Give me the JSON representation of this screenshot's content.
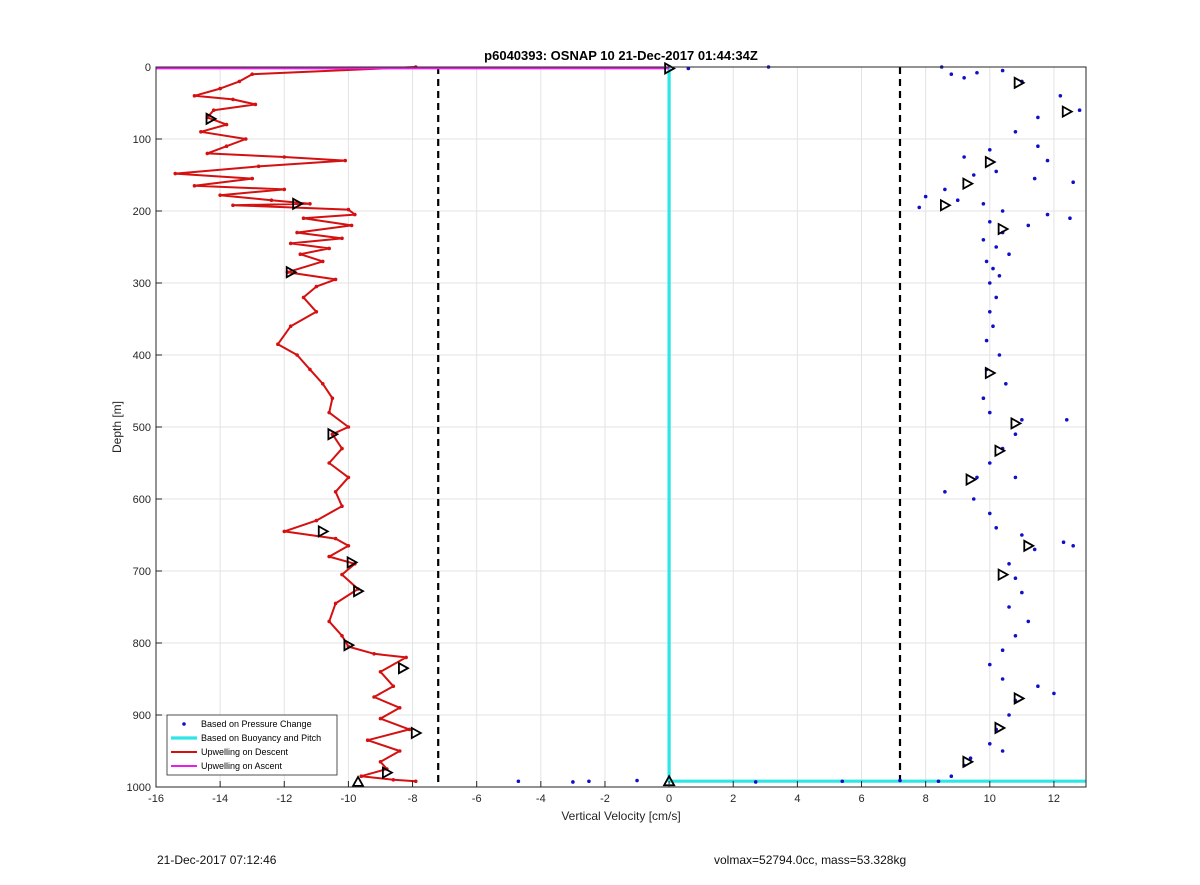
{
  "chart_data": {
    "type": "line",
    "title": "p6040393: OSNAP 10 21-Dec-2017 01:44:34Z",
    "xlabel": "Vertical Velocity [cm/s]",
    "ylabel": "Depth [m]",
    "xlim": [
      -16,
      13
    ],
    "ylim": [
      0,
      1000
    ],
    "y_reversed": true,
    "grid": true,
    "x_ticks": [
      "-16",
      "-14",
      "-12",
      "-10",
      "-8",
      "-6",
      "-4",
      "-2",
      "0",
      "2",
      "4",
      "6",
      "8",
      "10",
      "12"
    ],
    "x_tick_values": [
      -16,
      -14,
      -12,
      -10,
      -8,
      -6,
      -4,
      -2,
      0,
      2,
      4,
      6,
      8,
      10,
      12
    ],
    "y_ticks": [
      "0",
      "100",
      "200",
      "300",
      "400",
      "500",
      "600",
      "700",
      "800",
      "900",
      "1000"
    ],
    "y_tick_values": [
      0,
      100,
      200,
      300,
      400,
      500,
      600,
      700,
      800,
      900,
      1000
    ],
    "legend_position": "bottom-left",
    "vlines": [
      {
        "x": -7.2,
        "style": "dashed",
        "color": "#000000"
      },
      {
        "x": 7.2,
        "style": "dashed",
        "color": "#000000"
      }
    ],
    "series": [
      {
        "name": "Based on Pressure Change",
        "kind": "scatter",
        "color": "#1010c8",
        "points": [
          [
            8.5,
            0
          ],
          [
            8.8,
            10
          ],
          [
            9.6,
            8
          ],
          [
            10.4,
            5
          ],
          [
            9.2,
            15
          ],
          [
            11.0,
            20
          ],
          [
            12.2,
            40
          ],
          [
            12.8,
            60
          ],
          [
            11.5,
            70
          ],
          [
            10.8,
            90
          ],
          [
            11.5,
            110
          ],
          [
            10.0,
            115
          ],
          [
            9.2,
            125
          ],
          [
            11.8,
            130
          ],
          [
            10.2,
            145
          ],
          [
            9.5,
            150
          ],
          [
            11.4,
            155
          ],
          [
            12.6,
            160
          ],
          [
            8.6,
            170
          ],
          [
            8.0,
            180
          ],
          [
            9.0,
            185
          ],
          [
            9.8,
            190
          ],
          [
            7.8,
            195
          ],
          [
            10.4,
            200
          ],
          [
            11.8,
            205
          ],
          [
            12.5,
            210
          ],
          [
            10.0,
            215
          ],
          [
            11.2,
            220
          ],
          [
            10.4,
            230
          ],
          [
            9.8,
            240
          ],
          [
            10.2,
            250
          ],
          [
            10.6,
            260
          ],
          [
            9.9,
            270
          ],
          [
            10.1,
            280
          ],
          [
            10.3,
            290
          ],
          [
            10.0,
            300
          ],
          [
            10.2,
            320
          ],
          [
            10.0,
            340
          ],
          [
            10.1,
            360
          ],
          [
            9.9,
            380
          ],
          [
            10.3,
            400
          ],
          [
            9.9,
            420
          ],
          [
            10.5,
            440
          ],
          [
            9.8,
            460
          ],
          [
            10.0,
            480
          ],
          [
            11.0,
            490
          ],
          [
            12.4,
            490
          ],
          [
            10.8,
            510
          ],
          [
            10.4,
            530
          ],
          [
            10.0,
            550
          ],
          [
            9.6,
            570
          ],
          [
            10.8,
            570
          ],
          [
            8.6,
            590
          ],
          [
            9.5,
            600
          ],
          [
            10.0,
            620
          ],
          [
            10.2,
            640
          ],
          [
            11.0,
            650
          ],
          [
            12.3,
            660
          ],
          [
            12.6,
            665
          ],
          [
            11.4,
            670
          ],
          [
            10.6,
            690
          ],
          [
            10.8,
            710
          ],
          [
            11.0,
            730
          ],
          [
            10.6,
            750
          ],
          [
            11.2,
            770
          ],
          [
            10.8,
            790
          ],
          [
            10.4,
            810
          ],
          [
            10.0,
            830
          ],
          [
            10.4,
            850
          ],
          [
            11.5,
            860
          ],
          [
            12.0,
            870
          ],
          [
            10.8,
            880
          ],
          [
            10.6,
            900
          ],
          [
            10.2,
            920
          ],
          [
            10.0,
            940
          ],
          [
            10.4,
            950
          ],
          [
            9.4,
            960
          ],
          [
            9.2,
            970
          ],
          [
            8.8,
            985
          ],
          [
            8.4,
            992
          ],
          [
            0.6,
            2
          ],
          [
            3.1,
            0
          ],
          [
            -4.7,
            992
          ],
          [
            -3.0,
            993
          ],
          [
            -2.5,
            992
          ],
          [
            -1.0,
            991
          ],
          [
            2.7,
            993
          ],
          [
            5.4,
            992
          ],
          [
            7.2,
            991
          ]
        ]
      },
      {
        "name": "Based on Buoyancy and Pitch",
        "kind": "line",
        "color": "#2ee6e6",
        "points": [
          [
            0,
            0
          ],
          [
            0,
            992
          ],
          [
            13,
            992
          ]
        ]
      },
      {
        "name": "Upwelling on Descent",
        "kind": "line",
        "color": "#d41010",
        "points": [
          [
            -7.9,
            0
          ],
          [
            -13.0,
            10
          ],
          [
            -13.4,
            20
          ],
          [
            -14.0,
            30
          ],
          [
            -14.8,
            40
          ],
          [
            -13.6,
            45
          ],
          [
            -12.9,
            52
          ],
          [
            -14.2,
            60
          ],
          [
            -14.4,
            70
          ],
          [
            -13.8,
            80
          ],
          [
            -14.6,
            90
          ],
          [
            -13.2,
            100
          ],
          [
            -13.8,
            110
          ],
          [
            -14.4,
            120
          ],
          [
            -12.0,
            125
          ],
          [
            -10.1,
            130
          ],
          [
            -12.8,
            138
          ],
          [
            -15.4,
            148
          ],
          [
            -13.0,
            155
          ],
          [
            -14.8,
            165
          ],
          [
            -12.0,
            170
          ],
          [
            -14.0,
            178
          ],
          [
            -12.4,
            185
          ],
          [
            -11.2,
            190
          ],
          [
            -13.6,
            192
          ],
          [
            -10.0,
            198
          ],
          [
            -9.8,
            205
          ],
          [
            -11.4,
            210
          ],
          [
            -9.9,
            220
          ],
          [
            -11.6,
            230
          ],
          [
            -10.2,
            238
          ],
          [
            -11.8,
            245
          ],
          [
            -10.6,
            252
          ],
          [
            -11.5,
            260
          ],
          [
            -10.8,
            270
          ],
          [
            -11.9,
            285
          ],
          [
            -10.4,
            295
          ],
          [
            -11.0,
            305
          ],
          [
            -11.4,
            320
          ],
          [
            -11.0,
            340
          ],
          [
            -11.8,
            360
          ],
          [
            -12.2,
            385
          ],
          [
            -11.6,
            400
          ],
          [
            -11.2,
            420
          ],
          [
            -10.8,
            440
          ],
          [
            -10.5,
            460
          ],
          [
            -10.6,
            480
          ],
          [
            -10.0,
            500
          ],
          [
            -10.5,
            510
          ],
          [
            -10.2,
            530
          ],
          [
            -10.6,
            550
          ],
          [
            -10.0,
            570
          ],
          [
            -10.4,
            590
          ],
          [
            -10.2,
            610
          ],
          [
            -11.0,
            630
          ],
          [
            -12.0,
            645
          ],
          [
            -10.4,
            655
          ],
          [
            -10.0,
            665
          ],
          [
            -10.6,
            680
          ],
          [
            -9.8,
            690
          ],
          [
            -10.2,
            705
          ],
          [
            -9.7,
            725
          ],
          [
            -10.4,
            745
          ],
          [
            -10.6,
            770
          ],
          [
            -10.2,
            790
          ],
          [
            -10.0,
            805
          ],
          [
            -9.2,
            815
          ],
          [
            -8.2,
            820
          ],
          [
            -9.0,
            840
          ],
          [
            -8.6,
            860
          ],
          [
            -9.2,
            875
          ],
          [
            -8.4,
            890
          ],
          [
            -9.0,
            905
          ],
          [
            -8.1,
            920
          ],
          [
            -9.4,
            935
          ],
          [
            -8.4,
            950
          ],
          [
            -9.0,
            965
          ],
          [
            -8.8,
            975
          ],
          [
            -9.6,
            985
          ],
          [
            -8.6,
            990
          ],
          [
            -7.9,
            992
          ]
        ]
      },
      {
        "name": "Upwelling on Ascent",
        "kind": "line",
        "color": "#e61ee6",
        "points": [
          [
            -16,
            2
          ],
          [
            0,
            2
          ]
        ]
      },
      {
        "name": "",
        "kind": "markers",
        "marker": "triangle-right",
        "color": "#000000",
        "points": [
          [
            -14.3,
            72
          ],
          [
            -11.6,
            190
          ],
          [
            -11.8,
            285
          ],
          [
            -10.5,
            510
          ],
          [
            -10.8,
            645
          ],
          [
            -9.9,
            688
          ],
          [
            -9.7,
            728
          ],
          [
            -10.0,
            803
          ],
          [
            -8.3,
            835
          ],
          [
            -7.9,
            925
          ],
          [
            -8.8,
            980
          ],
          [
            10.9,
            22
          ],
          [
            12.4,
            62
          ],
          [
            10.0,
            132
          ],
          [
            9.3,
            162
          ],
          [
            8.6,
            192
          ],
          [
            10.4,
            225
          ],
          [
            10.0,
            425
          ],
          [
            10.8,
            495
          ],
          [
            10.3,
            533
          ],
          [
            9.4,
            573
          ],
          [
            11.2,
            665
          ],
          [
            10.4,
            705
          ],
          [
            10.9,
            877
          ],
          [
            10.3,
            918
          ],
          [
            9.3,
            965
          ]
        ]
      },
      {
        "name": "",
        "kind": "markers",
        "marker": "triangle-up",
        "color": "#000000",
        "points": [
          [
            -9.7,
            993
          ],
          [
            0,
            992
          ]
        ]
      },
      {
        "name": "",
        "kind": "markers",
        "marker": "triangle-right",
        "color": "#000000",
        "points": [
          [
            0,
            2
          ]
        ]
      }
    ]
  },
  "footer": {
    "timestamp": "21-Dec-2017 07:12:46",
    "stats": "volmax=52794.0cc, mass=53.328kg"
  }
}
